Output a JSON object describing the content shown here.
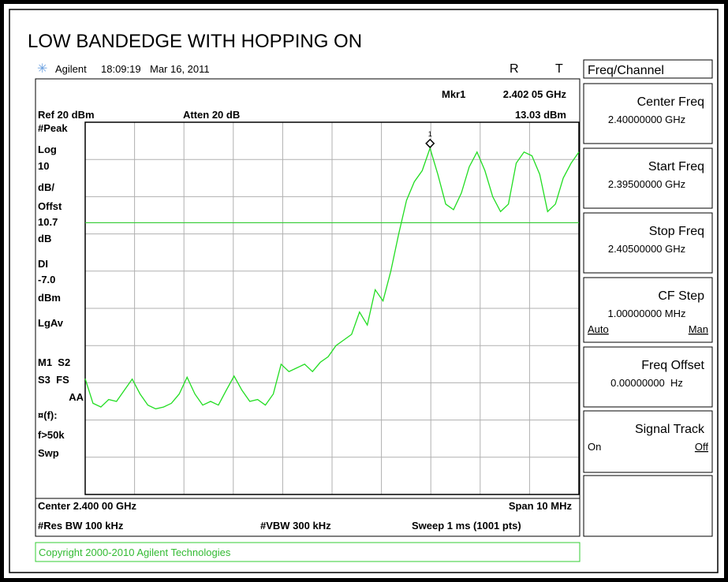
{
  "title": "LOW BANDEDGE WITH HOPPING ON",
  "status": {
    "brand": "Agilent",
    "time": "18:09:19",
    "date": "Mar 16, 2011",
    "r": "R",
    "t": "T"
  },
  "menu": {
    "title": "Freq/Channel",
    "keys": [
      {
        "label": "Center Freq",
        "value": "2.40000000 GHz"
      },
      {
        "label": "Start Freq",
        "value": "2.39500000 GHz"
      },
      {
        "label": "Stop Freq",
        "value": "2.40500000 GHz"
      },
      {
        "label": "CF Step",
        "value": "1.00000000 MHz",
        "options": [
          "Auto",
          "Man"
        ]
      },
      {
        "label": "Freq Offset",
        "value": "0.00000000  Hz"
      },
      {
        "label": "Signal Track",
        "options": [
          "On",
          "Off"
        ]
      }
    ]
  },
  "marker": {
    "name": "Mkr1",
    "frequency": "2.402 05 GHz",
    "level": "13.03 dBm",
    "label": "1"
  },
  "header": {
    "ref": "Ref 20 dBm",
    "atten": "Atten 20 dB"
  },
  "side_labels": [
    "#Peak",
    "Log",
    "10",
    "dB/",
    "Offst",
    "10.7",
    "dB",
    "DI",
    "dBm",
    "LgAv",
    "M1  S2",
    "S3  FS",
    "AA",
    "¤(f):",
    "f>50k",
    "Swp"
  ],
  "footer": {
    "center": "Center 2.400 00 GHz",
    "span": "Span 10 MHz",
    "rbw": "#Res BW 100 kHz",
    "vbw": "#VBW 300 kHz",
    "sweep": "Sweep 1 ms (1001 pts)"
  },
  "copyright": "Copyright 2000-2010 Agilent Technologies",
  "trace": {
    "ylim": [
      -80,
      20
    ],
    "display_line": {
      "value": -7,
      "label": "-7.0"
    },
    "values": [
      -48.9,
      -55.5,
      -56.5,
      -54.5,
      -55,
      -52,
      -49,
      -53,
      -56,
      -57,
      -56.5,
      -55.5,
      -53,
      -48.5,
      -53,
      -56,
      -55,
      -56,
      -52,
      -48.2,
      -52,
      -55,
      -54.5,
      -56,
      -53,
      -45,
      -47,
      -46,
      -45,
      -47,
      -44.5,
      -43,
      -40,
      -38.5,
      -37,
      -31,
      -34.5,
      -25,
      -28,
      -20,
      -10,
      -1,
      4,
      7,
      13.03,
      6,
      -2,
      -3.5,
      1,
      8,
      12,
      7,
      0,
      -4,
      -2,
      9,
      12,
      11,
      6,
      -4,
      -2,
      5,
      9,
      12
    ]
  }
}
